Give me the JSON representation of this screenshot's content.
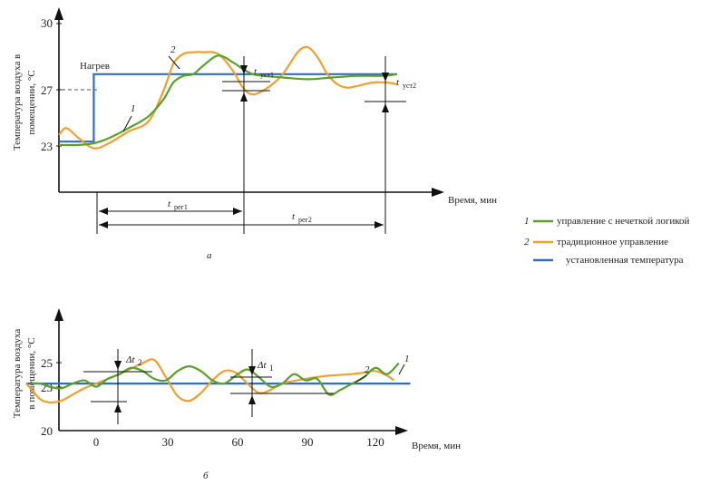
{
  "colors": {
    "fuzzy": "#5aa02c",
    "traditional": "#f0a030",
    "setpoint": "#2e6fc0",
    "axis": "#111111"
  },
  "legend": {
    "items": [
      {
        "num": "1",
        "label": "управление с нечеткой логикой",
        "color": "#5aa02c"
      },
      {
        "num": "2",
        "label": "традиционное управление",
        "color": "#f0a030"
      },
      {
        "num": "",
        "label": "установленная температура",
        "color": "#2e6fc0"
      }
    ]
  },
  "chart_data": [
    {
      "type": "line",
      "panel_label": "а",
      "ylabel_line1": "Температура воздуха в",
      "ylabel_line2": "помещении, °С",
      "xlabel": "Время, мин",
      "yticks": [
        "30",
        "27",
        "23"
      ],
      "annotations": {
        "heating": "Нагрев",
        "curve1": "1",
        "curve2": "2",
        "t_ust1_main": "t",
        "t_ust1_sub": "уст1",
        "t_ust2_main": "t",
        "t_ust2_sub": "уст2",
        "t_reg1_main": "t",
        "t_reg1_sub": "рег1",
        "t_reg2_main": "t",
        "t_reg2_sub": "рег2"
      },
      "ylim": [
        20,
        30
      ],
      "xlim": [
        0,
        155
      ],
      "series": [
        {
          "key": "fuzzy",
          "x": [
            0,
            8,
            14,
            20,
            28,
            36,
            42,
            46,
            50,
            54,
            58,
            64,
            70,
            74,
            78,
            82,
            90,
            100,
            110,
            120,
            130,
            136
          ],
          "y": [
            22.8,
            22.8,
            22.9,
            23.2,
            23.8,
            24.5,
            25.5,
            26.5,
            26.9,
            27.0,
            27.5,
            28.1,
            27.7,
            27.3,
            27.0,
            26.9,
            26.8,
            26.7,
            26.8,
            26.9,
            26.9,
            27.0
          ]
        },
        {
          "key": "traditional",
          "x": [
            0,
            3,
            8,
            14,
            20,
            28,
            36,
            42,
            46,
            50,
            54,
            58,
            64,
            70,
            74,
            78,
            84,
            90,
            96,
            100,
            104,
            108,
            112,
            116,
            120,
            126,
            132,
            136
          ],
          "y": [
            23.4,
            23.8,
            23.2,
            22.6,
            22.9,
            23.6,
            24.2,
            26.0,
            27.6,
            28.2,
            28.3,
            28.3,
            28.2,
            27.2,
            26.2,
            25.8,
            26.2,
            27.0,
            28.3,
            28.6,
            28.0,
            27.0,
            26.4,
            26.2,
            26.3,
            26.5,
            26.5,
            26.4
          ]
        },
        {
          "key": "setpoint",
          "x": [
            0,
            14,
            14,
            136
          ],
          "y": [
            23.0,
            23.0,
            27.0,
            27.0
          ]
        }
      ]
    },
    {
      "type": "line",
      "panel_label": "б",
      "ylabel_line1": "Температура воздуха",
      "ylabel_line2": "в помещении, °С",
      "xlabel": "Время, мин",
      "yticks": [
        "25",
        "23",
        "20"
      ],
      "xticks": [
        "0",
        "30",
        "60",
        "90",
        "120"
      ],
      "annotations": {
        "curve1": "1",
        "curve2": "2",
        "dt2_main": "Δt",
        "dt2_sub": "2",
        "dt1_main": "Δt",
        "dt1_sub": "1"
      },
      "ylim": [
        20,
        28
      ],
      "xlim": [
        -30,
        135
      ],
      "series": [
        {
          "key": "fuzzy",
          "x": [
            -28,
            -24,
            -20,
            -15,
            -10,
            -5,
            0,
            5,
            10,
            15,
            20,
            25,
            30,
            35,
            40,
            45,
            50,
            55,
            60,
            65,
            70,
            75,
            80,
            85,
            90,
            95,
            100,
            105,
            110,
            115,
            120,
            125,
            130
          ],
          "y": [
            23.0,
            23.0,
            22.8,
            22.7,
            23.0,
            23.2,
            22.8,
            23.3,
            23.6,
            24.0,
            23.8,
            23.3,
            23.2,
            23.8,
            24.1,
            23.8,
            23.2,
            23.0,
            23.5,
            23.9,
            23.4,
            22.8,
            23.0,
            23.6,
            23.2,
            23.3,
            22.3,
            22.6,
            23.0,
            23.4,
            24.0,
            23.6,
            24.3
          ]
        },
        {
          "key": "traditional",
          "x": [
            -30,
            -27,
            -24,
            -20,
            -15,
            -10,
            -5,
            0,
            10,
            20,
            25,
            30,
            35,
            40,
            45,
            50,
            55,
            60,
            65,
            70,
            75,
            80,
            90,
            100,
            110,
            115,
            120,
            125,
            128
          ],
          "y": [
            23.0,
            22.5,
            22.0,
            21.8,
            21.9,
            22.3,
            22.7,
            23.0,
            23.6,
            24.3,
            24.5,
            23.4,
            22.2,
            21.9,
            22.4,
            23.2,
            23.8,
            23.7,
            23.0,
            22.4,
            22.6,
            23.0,
            23.3,
            23.5,
            23.6,
            23.7,
            23.8,
            23.5,
            23.2
          ]
        },
        {
          "key": "setpoint",
          "x": [
            -30,
            135
          ],
          "y": [
            23.0,
            23.0
          ]
        }
      ]
    }
  ]
}
